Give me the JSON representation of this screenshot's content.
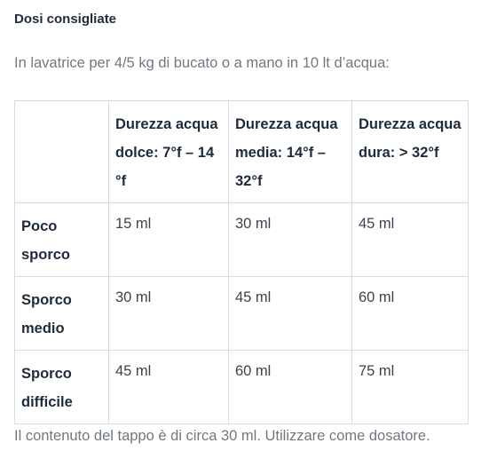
{
  "section_title": "Dosi consigliate",
  "intro": "In lavatrice per 4/5 kg di bucato o a mano in 10 lt d’acqua:",
  "table": {
    "corner": "",
    "headers": [
      "Durezza acqua dolce: 7°f – 14 °f",
      "Durezza acqua media: 14°f – 32°f",
      "Durezza acqua dura: > 32°f"
    ],
    "rows": [
      {
        "label": "Poco sporco",
        "values": [
          "15 ml",
          "30 ml",
          "45 ml"
        ]
      },
      {
        "label": "Sporco medio",
        "values": [
          "30 ml",
          "45 ml",
          "60 ml"
        ]
      },
      {
        "label": "Sporco difficile",
        "values": [
          "45 ml",
          "60 ml",
          "75 ml"
        ]
      }
    ]
  },
  "note": "Il contenuto del tappo è di circa 30 ml. Utilizzare come dosatore."
}
